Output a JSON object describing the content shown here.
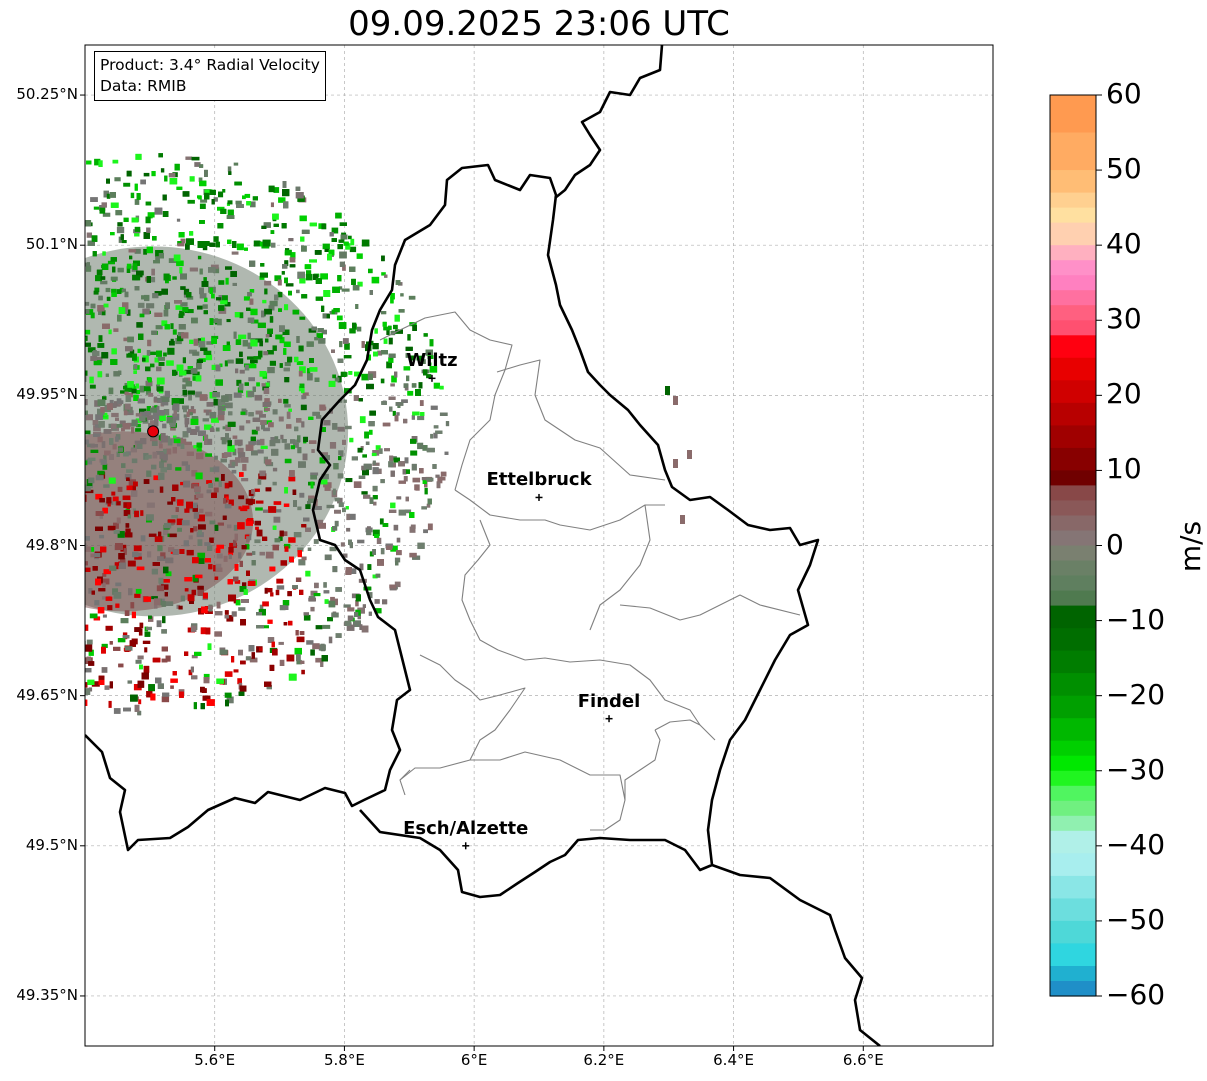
{
  "title": "09.09.2025 23:06 UTC",
  "info": {
    "product": "Product: 3.4° Radial Velocity",
    "source": "Data: RMIB"
  },
  "axes": {
    "y_ticks": [
      "50.25°N",
      "50.1°N",
      "49.95°N",
      "49.8°N",
      "49.65°N",
      "49.5°N",
      "49.35°N"
    ],
    "x_ticks": [
      "5.6°E",
      "5.8°E",
      "6°E",
      "6.2°E",
      "6.4°E",
      "6.6°E"
    ],
    "lat_range": [
      49.3,
      50.3
    ],
    "lon_range": [
      5.4,
      6.8
    ]
  },
  "cities": [
    {
      "name": "Wiltz",
      "lon": 5.935,
      "lat": 49.967
    },
    {
      "name": "Ettelbruck",
      "lon": 6.1,
      "lat": 49.848
    },
    {
      "name": "Findel",
      "lon": 6.208,
      "lat": 49.627
    },
    {
      "name": "Esch/Alzette",
      "lon": 5.987,
      "lat": 49.5
    }
  ],
  "radar_site": {
    "lon": 5.505,
    "lat": 49.914,
    "color": "#e8000b"
  },
  "colorbar": {
    "label": "m/s",
    "range": [
      -60,
      60
    ],
    "ticks": [
      "60",
      "50",
      "40",
      "30",
      "20",
      "10",
      "0",
      "−10",
      "−20",
      "−30",
      "−40",
      "−50",
      "−60"
    ]
  },
  "colors": {
    "border": "#000000",
    "admin": "#808080",
    "grid": "#b0b0b0"
  }
}
